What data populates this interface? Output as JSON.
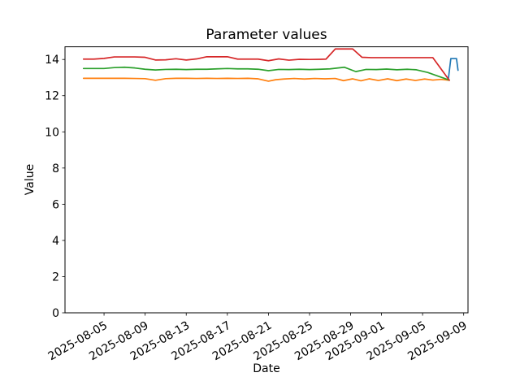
{
  "chart_data": {
    "type": "line",
    "title": "Parameter values",
    "xlabel": "Date",
    "ylabel": "Value",
    "x_unit": "days since 2025-08-03",
    "x_start_date": "2025-08-03",
    "xlim": [
      -1.8,
      37.42
    ],
    "ylim": [
      0,
      14.7
    ],
    "grid": false,
    "legend": "none",
    "x_ticks": [
      {
        "offset": 2,
        "label": "2025-08-05"
      },
      {
        "offset": 6,
        "label": "2025-08-09"
      },
      {
        "offset": 10,
        "label": "2025-08-13"
      },
      {
        "offset": 14,
        "label": "2025-08-17"
      },
      {
        "offset": 18,
        "label": "2025-08-21"
      },
      {
        "offset": 22,
        "label": "2025-08-25"
      },
      {
        "offset": 26,
        "label": "2025-08-29"
      },
      {
        "offset": 29,
        "label": "2025-09-01"
      },
      {
        "offset": 33,
        "label": "2025-09-05"
      },
      {
        "offset": 37,
        "label": "2025-09-09"
      }
    ],
    "y_ticks": [
      {
        "value": 0,
        "label": "0"
      },
      {
        "value": 2,
        "label": "2"
      },
      {
        "value": 4,
        "label": "4"
      },
      {
        "value": 6,
        "label": "6"
      },
      {
        "value": 8,
        "label": "8"
      },
      {
        "value": 10,
        "label": "10"
      },
      {
        "value": 12,
        "label": "12"
      },
      {
        "value": 14,
        "label": "14"
      }
    ],
    "series": [
      {
        "name": "series-blue",
        "color": "#1f77b4",
        "points": [
          [
            35.5,
            12.88
          ],
          [
            35.75,
            14.05
          ],
          [
            36.3,
            14.05
          ],
          [
            36.45,
            13.4
          ]
        ]
      },
      {
        "name": "series-orange",
        "color": "#ff7f0e",
        "points": [
          [
            0,
            12.96
          ],
          [
            1,
            12.96
          ],
          [
            2,
            12.96
          ],
          [
            3,
            12.96
          ],
          [
            4,
            12.96
          ],
          [
            5,
            12.95
          ],
          [
            6,
            12.94
          ],
          [
            7,
            12.85
          ],
          [
            8,
            12.94
          ],
          [
            9,
            12.96
          ],
          [
            10,
            12.96
          ],
          [
            11,
            12.95
          ],
          [
            12,
            12.96
          ],
          [
            13,
            12.95
          ],
          [
            14,
            12.96
          ],
          [
            15,
            12.95
          ],
          [
            16,
            12.96
          ],
          [
            17,
            12.93
          ],
          [
            18,
            12.8
          ],
          [
            18.7,
            12.88
          ],
          [
            19.5,
            12.92
          ],
          [
            20.5,
            12.95
          ],
          [
            21.5,
            12.92
          ],
          [
            22.5,
            12.95
          ],
          [
            23.5,
            12.93
          ],
          [
            24.5,
            12.95
          ],
          [
            25.3,
            12.83
          ],
          [
            26.2,
            12.93
          ],
          [
            27,
            12.82
          ],
          [
            27.8,
            12.93
          ],
          [
            28.7,
            12.84
          ],
          [
            29.6,
            12.93
          ],
          [
            30.5,
            12.83
          ],
          [
            31.4,
            12.92
          ],
          [
            32.3,
            12.84
          ],
          [
            33.2,
            12.92
          ],
          [
            34,
            12.86
          ],
          [
            34.8,
            12.9
          ],
          [
            35.6,
            12.85
          ]
        ]
      },
      {
        "name": "series-green",
        "color": "#2ca02c",
        "points": [
          [
            0,
            13.5
          ],
          [
            1,
            13.5
          ],
          [
            2,
            13.5
          ],
          [
            3,
            13.55
          ],
          [
            4,
            13.57
          ],
          [
            5,
            13.53
          ],
          [
            6,
            13.46
          ],
          [
            7,
            13.42
          ],
          [
            8,
            13.45
          ],
          [
            9,
            13.46
          ],
          [
            10,
            13.44
          ],
          [
            11,
            13.46
          ],
          [
            12,
            13.46
          ],
          [
            13,
            13.48
          ],
          [
            14,
            13.5
          ],
          [
            15,
            13.48
          ],
          [
            16,
            13.48
          ],
          [
            17,
            13.46
          ],
          [
            18,
            13.38
          ],
          [
            19,
            13.45
          ],
          [
            20,
            13.44
          ],
          [
            21,
            13.46
          ],
          [
            22,
            13.44
          ],
          [
            23,
            13.46
          ],
          [
            24,
            13.48
          ],
          [
            25.4,
            13.57
          ],
          [
            26.5,
            13.33
          ],
          [
            27.5,
            13.45
          ],
          [
            28.5,
            13.44
          ],
          [
            29.5,
            13.47
          ],
          [
            30.5,
            13.43
          ],
          [
            31.5,
            13.46
          ],
          [
            32.4,
            13.43
          ],
          [
            33.5,
            13.28
          ],
          [
            34.5,
            13.08
          ],
          [
            35.6,
            12.86
          ]
        ]
      },
      {
        "name": "series-red",
        "color": "#d62728",
        "points": [
          [
            0,
            14.02
          ],
          [
            1,
            14.02
          ],
          [
            2,
            14.06
          ],
          [
            3,
            14.14
          ],
          [
            4,
            14.14
          ],
          [
            5,
            14.14
          ],
          [
            6,
            14.12
          ],
          [
            7,
            13.97
          ],
          [
            8,
            13.98
          ],
          [
            9,
            14.04
          ],
          [
            10,
            13.97
          ],
          [
            11,
            14.03
          ],
          [
            12,
            14.15
          ],
          [
            13,
            14.15
          ],
          [
            14,
            14.15
          ],
          [
            15,
            14.02
          ],
          [
            16,
            14.02
          ],
          [
            17,
            14.02
          ],
          [
            18,
            13.93
          ],
          [
            19,
            14.03
          ],
          [
            20,
            13.96
          ],
          [
            21,
            14.01
          ],
          [
            22,
            14.0
          ],
          [
            23,
            14.01
          ],
          [
            23.6,
            14.02
          ],
          [
            24.5,
            14.58
          ],
          [
            26.2,
            14.58
          ],
          [
            27.1,
            14.12
          ],
          [
            28,
            14.1
          ],
          [
            29,
            14.1
          ],
          [
            30,
            14.1
          ],
          [
            31,
            14.1
          ],
          [
            32,
            14.1
          ],
          [
            33,
            14.1
          ],
          [
            34,
            14.1
          ],
          [
            35.6,
            12.85
          ]
        ]
      }
    ]
  }
}
